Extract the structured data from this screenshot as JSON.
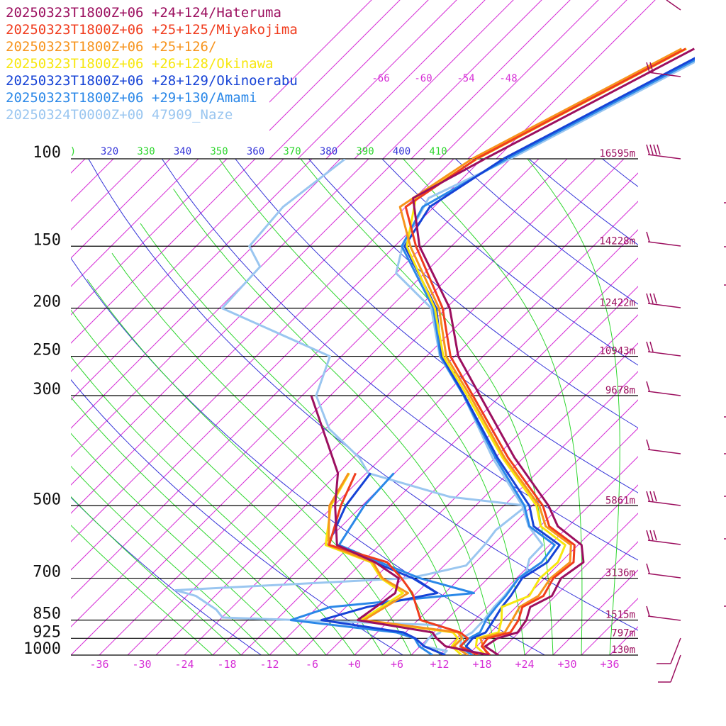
{
  "chart_data": {
    "type": "skew-t",
    "legend": [
      {
        "label": "20250323T1800Z+06 +24+124/Hateruma",
        "color": "#9c0f5f"
      },
      {
        "label": "20250323T1800Z+06 +25+125/Miyakojima",
        "color": "#f03c1e"
      },
      {
        "label": "20250323T1800Z+06 +25+126/",
        "color": "#f7941d"
      },
      {
        "label": "20250323T1800Z+06 +26+128/Okinawa",
        "color": "#f7e70f"
      },
      {
        "label": "20250323T1800Z+06 +28+129/Okinoerabu",
        "color": "#1643d6"
      },
      {
        "label": "20250323T1800Z+06 +29+130/Amami",
        "color": "#2b88e8"
      },
      {
        "label": "20250324T0000Z+00 47909_Naze",
        "color": "#9ac6f0"
      }
    ],
    "pressure_levels": [
      100,
      150,
      200,
      250,
      300,
      500,
      700,
      850,
      925,
      1000
    ],
    "heights": [
      {
        "p": 100,
        "label": "16595m"
      },
      {
        "p": 150,
        "label": "14228m"
      },
      {
        "p": 200,
        "label": "12422m"
      },
      {
        "p": 250,
        "label": "10943m"
      },
      {
        "p": 300,
        "label": "9678m"
      },
      {
        "p": 500,
        "label": "5861m"
      },
      {
        "p": 700,
        "label": "3136m"
      },
      {
        "p": 850,
        "label": "1515m"
      },
      {
        "p": 925,
        "label": "797m"
      },
      {
        "p": 1000,
        "label": "130m"
      }
    ],
    "x_ticks": [
      "-36",
      "-30",
      "-24",
      "-18",
      "-12",
      "-6",
      "+0",
      "+6",
      "+12",
      "+18",
      "+24",
      "+30",
      "+36"
    ],
    "x_range": [
      -40,
      40
    ],
    "y_range": [
      1000,
      100
    ],
    "top_isotherm_labels": [
      "-66",
      "-60",
      "-54",
      "-48"
    ],
    "theta_labels": [
      ")",
      "320",
      "330",
      "340",
      "350",
      "360",
      "370",
      "380",
      "390",
      "400",
      "410"
    ],
    "colors": {
      "isotherm": "#d62fd6",
      "dry_adiabat": "#3434d8",
      "moist_adiabat": "#2ed62e",
      "isobar": "#000000",
      "barb": "#9c0f5f"
    },
    "series": [
      {
        "name": "20250323T1800Z+06 +24+124/Hateruma",
        "temperature": [
          [
            1000,
            20.3
          ],
          [
            960,
            17.2
          ],
          [
            925,
            17.8
          ],
          [
            900,
            19.8
          ],
          [
            850,
            19.3
          ],
          [
            800,
            18.0
          ],
          [
            760,
            19.5
          ],
          [
            700,
            18.3
          ],
          [
            650,
            19.2
          ],
          [
            600,
            16.5
          ],
          [
            550,
            10.5
          ],
          [
            500,
            6.3
          ],
          [
            400,
            -5.3
          ],
          [
            300,
            -18.9
          ],
          [
            250,
            -27.5
          ],
          [
            200,
            -35.5
          ],
          [
            150,
            -48.5
          ],
          [
            120,
            -56.2
          ],
          [
            100,
            -51.6
          ]
        ],
        "dewpoint": [
          [
            1000,
            19.0
          ],
          [
            960,
            11.6
          ],
          [
            925,
            9.2
          ],
          [
            900,
            7.8
          ],
          [
            850,
            -4.5
          ],
          [
            750,
            -3.0
          ],
          [
            700,
            -4.6
          ],
          [
            650,
            -10.2
          ],
          [
            600,
            -18.0
          ],
          [
            500,
            -23.8
          ],
          [
            430,
            -28.0
          ],
          [
            300,
            -42.7
          ]
        ]
      },
      {
        "name": "20250323T1800Z+06 +25+125/Miyakojima",
        "temperature": [
          [
            1000,
            19.1
          ],
          [
            960,
            16.7
          ],
          [
            925,
            16.4
          ],
          [
            900,
            18.8
          ],
          [
            850,
            18.2
          ],
          [
            800,
            16.9
          ],
          [
            760,
            18.3
          ],
          [
            700,
            17.2
          ],
          [
            650,
            17.8
          ],
          [
            600,
            15.5
          ],
          [
            550,
            9.3
          ],
          [
            500,
            5.5
          ],
          [
            400,
            -6.2
          ],
          [
            300,
            -19.9
          ],
          [
            250,
            -28.6
          ],
          [
            200,
            -36.5
          ],
          [
            150,
            -49.0
          ],
          [
            125,
            -56.0
          ],
          [
            100,
            -52.8
          ]
        ],
        "dewpoint": [
          [
            1000,
            17.4
          ],
          [
            960,
            13.7
          ],
          [
            925,
            13.6
          ],
          [
            900,
            11.7
          ],
          [
            850,
            4.4
          ],
          [
            750,
            -0.6
          ],
          [
            700,
            -4.2
          ],
          [
            650,
            -8.5
          ],
          [
            600,
            -19.1
          ],
          [
            500,
            -23.0
          ],
          [
            430,
            -25.5
          ]
        ]
      },
      {
        "name": "20250323T1800Z+06 +25+126/",
        "temperature": [
          [
            1000,
            18.8
          ],
          [
            960,
            16.9
          ],
          [
            925,
            15.4
          ],
          [
            900,
            18.0
          ],
          [
            850,
            17.3
          ],
          [
            800,
            16.5
          ],
          [
            760,
            17.6
          ],
          [
            700,
            16.8
          ],
          [
            650,
            17.3
          ],
          [
            600,
            15.0
          ],
          [
            550,
            8.8
          ],
          [
            500,
            5.0
          ],
          [
            400,
            -6.7
          ],
          [
            300,
            -20.3
          ],
          [
            250,
            -29.2
          ],
          [
            200,
            -37.0
          ],
          [
            150,
            -49.8
          ],
          [
            125,
            -56.8
          ],
          [
            100,
            -53.4
          ]
        ],
        "dewpoint": [
          [
            1000,
            16.0
          ],
          [
            960,
            12.8
          ],
          [
            925,
            12.8
          ],
          [
            900,
            11.4
          ],
          [
            850,
            -3.6
          ],
          [
            750,
            -1.2
          ],
          [
            700,
            -6.9
          ],
          [
            650,
            -10.5
          ],
          [
            600,
            -19.2
          ],
          [
            500,
            -24.6
          ],
          [
            430,
            -26.5
          ]
        ]
      },
      {
        "name": "20250323T1800Z+06 +26+128/Okinawa",
        "temperature": [
          [
            1000,
            18.5
          ],
          [
            960,
            15.9
          ],
          [
            925,
            14.9
          ],
          [
            900,
            17.1
          ],
          [
            850,
            15.8
          ],
          [
            800,
            14.0
          ],
          [
            760,
            16.3
          ],
          [
            700,
            15.3
          ],
          [
            650,
            15.6
          ],
          [
            600,
            14.2
          ],
          [
            550,
            8.1
          ],
          [
            500,
            4.6
          ],
          [
            400,
            -7.0
          ],
          [
            300,
            -20.7
          ],
          [
            250,
            -29.6
          ],
          [
            200,
            -37.6
          ],
          [
            150,
            -50.3
          ],
          [
            120,
            -55.8
          ],
          [
            100,
            -52.7
          ]
        ],
        "dewpoint": [
          [
            1000,
            15.1
          ],
          [
            960,
            12.5
          ],
          [
            925,
            12.2
          ],
          [
            900,
            10.7
          ],
          [
            850,
            -4.0
          ],
          [
            750,
            -1.9
          ],
          [
            700,
            -7.1
          ],
          [
            650,
            -10.8
          ],
          [
            600,
            -19.6
          ],
          [
            500,
            -24.4
          ],
          [
            430,
            -26.4
          ]
        ]
      },
      {
        "name": "20250323T1800Z+06 +28+129/Okinoerabu",
        "temperature": [
          [
            1000,
            17.2
          ],
          [
            960,
            14.5
          ],
          [
            925,
            14.3
          ],
          [
            900,
            15.3
          ],
          [
            850,
            14.7
          ],
          [
            800,
            14.0
          ],
          [
            760,
            13.7
          ],
          [
            700,
            12.8
          ],
          [
            650,
            14.1
          ],
          [
            600,
            13.4
          ],
          [
            550,
            7.1
          ],
          [
            500,
            3.6
          ],
          [
            400,
            -7.7
          ],
          [
            300,
            -21.1
          ],
          [
            250,
            -29.8
          ],
          [
            200,
            -37.4
          ],
          [
            150,
            -50.6
          ],
          [
            125,
            -52.6
          ],
          [
            100,
            -49.0
          ]
        ],
        "dewpoint": [
          [
            1000,
            12.8
          ],
          [
            960,
            8.6
          ],
          [
            925,
            6.2
          ],
          [
            900,
            3.7
          ],
          [
            850,
            -9.6
          ],
          [
            800,
            -5.0
          ],
          [
            750,
            2.9
          ],
          [
            700,
            -2.6
          ],
          [
            650,
            -10.3
          ],
          [
            600,
            -19.3
          ],
          [
            500,
            -22.3
          ],
          [
            430,
            -23.4
          ]
        ]
      },
      {
        "name": "20250323T1800Z+06 +29+130/Amami",
        "temperature": [
          [
            1000,
            16.6
          ],
          [
            960,
            13.7
          ],
          [
            925,
            13.8
          ],
          [
            900,
            14.5
          ],
          [
            850,
            13.6
          ],
          [
            800,
            13.2
          ],
          [
            760,
            13.0
          ],
          [
            700,
            12.3
          ],
          [
            650,
            13.3
          ],
          [
            600,
            12.7
          ],
          [
            550,
            6.5
          ],
          [
            500,
            2.9
          ],
          [
            400,
            -8.0
          ],
          [
            300,
            -21.2
          ],
          [
            250,
            -30.0
          ],
          [
            200,
            -37.8
          ],
          [
            150,
            -51.0
          ],
          [
            125,
            -53.6
          ],
          [
            100,
            -48.5
          ]
        ],
        "dewpoint": [
          [
            1000,
            11.0
          ],
          [
            960,
            7.9
          ],
          [
            925,
            6.1
          ],
          [
            900,
            2.7
          ],
          [
            850,
            -13.9
          ],
          [
            800,
            -10.2
          ],
          [
            750,
            8.1
          ],
          [
            700,
            -1.6
          ],
          [
            650,
            -9.5
          ],
          [
            600,
            -17.7
          ],
          [
            500,
            -19.7
          ],
          [
            430,
            -20.1
          ]
        ]
      },
      {
        "name": "20250324T0000Z+00 47909_Naze",
        "temperature": [
          [
            1000,
            16.4
          ],
          [
            970,
            14.0
          ],
          [
            925,
            12.7
          ],
          [
            900,
            13.4
          ],
          [
            850,
            13.3
          ],
          [
            800,
            12.9
          ],
          [
            760,
            12.8
          ],
          [
            700,
            12.3
          ],
          [
            680,
            12.5
          ],
          [
            640,
            11.1
          ],
          [
            600,
            11.0
          ],
          [
            550,
            6.4
          ],
          [
            500,
            2.6
          ],
          [
            400,
            -8.4
          ],
          [
            300,
            -21.2
          ],
          [
            250,
            -30.1
          ],
          [
            200,
            -38.1
          ],
          [
            170,
            -48.0
          ],
          [
            150,
            -50.9
          ],
          [
            120,
            -54.0
          ],
          [
            100,
            -48.0
          ]
        ],
        "dewpoint": [
          [
            1000,
            12.4
          ],
          [
            980,
            12.4
          ],
          [
            960,
            8.4
          ],
          [
            925,
            8.1
          ],
          [
            900,
            8.9
          ],
          [
            870,
            7.9
          ],
          [
            855,
            -7.7
          ],
          [
            840,
            -23.9
          ],
          [
            810,
            -25.9
          ],
          [
            760,
            -30.7
          ],
          [
            740,
            -34.4
          ],
          [
            700,
            -3.5
          ],
          [
            690,
            -1.5
          ],
          [
            660,
            3.1
          ],
          [
            600,
            2.8
          ],
          [
            560,
            2.3
          ],
          [
            500,
            3.2
          ],
          [
            480,
            -8.8
          ],
          [
            430,
            -23.7
          ],
          [
            400,
            -27.2
          ],
          [
            350,
            -35.5
          ],
          [
            300,
            -42.0
          ],
          [
            250,
            -45.6
          ],
          [
            200,
            -67.6
          ],
          [
            165,
            -68.1
          ],
          [
            150,
            -72.5
          ],
          [
            125,
            -73.3
          ],
          [
            100,
            -71.3
          ]
        ]
      }
    ]
  }
}
